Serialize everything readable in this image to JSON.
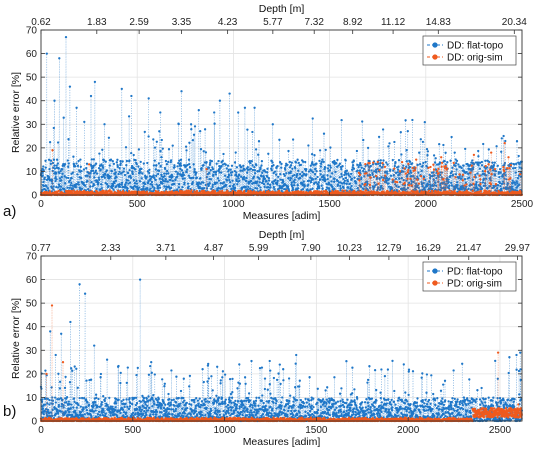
{
  "chart_data": [
    {
      "type": "scatter",
      "panel_label": "a)",
      "xlabel": "Measures [adim]",
      "ylabel": "Relative error [%]",
      "top_xlabel": "Depth [m]",
      "xlim": [
        0,
        2500
      ],
      "ylim": [
        0,
        70
      ],
      "x_ticks": [
        "0",
        "500",
        "1000",
        "1500",
        "2000",
        "2500"
      ],
      "x_tick_values": [
        0,
        500,
        1000,
        1500,
        2000,
        2500
      ],
      "y_ticks": [
        "0",
        "10",
        "20",
        "30",
        "40",
        "50",
        "60",
        "70"
      ],
      "y_tick_values": [
        0,
        10,
        20,
        30,
        40,
        50,
        60,
        70
      ],
      "top_ticks": [
        "0.62",
        "1.83",
        "2.59",
        "3.35",
        "4.23",
        "5.77",
        "7.32",
        "8.92",
        "11.12",
        "14.83",
        "20.34"
      ],
      "top_tick_positions": [
        0,
        290,
        510,
        730,
        970,
        1205,
        1420,
        1620,
        1830,
        2065,
        2460
      ],
      "grid": true,
      "legend_position": "top-right",
      "n_points": 2480,
      "series": [
        {
          "name": "DD: flat-topo",
          "color": "#1f77c8",
          "typical_range": [
            0,
            15
          ],
          "peaks": [
            [
              30,
              60
            ],
            [
              70,
              40
            ],
            [
              95,
              58
            ],
            [
              130,
              67
            ],
            [
              150,
              46
            ],
            [
              185,
              37
            ],
            [
              225,
              31
            ],
            [
              260,
              42
            ],
            [
              280,
              48
            ],
            [
              330,
              30
            ],
            [
              420,
              45
            ],
            [
              470,
              42
            ],
            [
              560,
              41
            ],
            [
              620,
              35
            ],
            [
              730,
              44
            ],
            [
              820,
              36
            ],
            [
              900,
              35
            ],
            [
              930,
              40
            ],
            [
              980,
              43
            ],
            [
              1025,
              35
            ],
            [
              1060,
              37
            ],
            [
              1110,
              37
            ],
            [
              1205,
              30
            ],
            [
              1390,
              21
            ],
            [
              1700,
              20
            ],
            [
              1900,
              19
            ],
            [
              2150,
              18
            ],
            [
              2395,
              24
            ]
          ]
        },
        {
          "name": "DD: orig-sim",
          "color": "#ef5a1e",
          "typical_range": [
            0,
            2
          ],
          "peaks": [
            [
              60,
              19
            ],
            [
              250,
              13
            ],
            [
              860,
              11
            ],
            [
              1750,
              14
            ],
            [
              1950,
              15
            ],
            [
              2080,
              16
            ],
            [
              2250,
              17
            ],
            [
              2340,
              18
            ],
            [
              2410,
              22
            ],
            [
              2430,
              16
            ]
          ]
        }
      ]
    },
    {
      "type": "scatter",
      "panel_label": "b)",
      "xlabel": "Measures [adim]",
      "ylabel": "Relative error [%]",
      "top_xlabel": "Depth [m]",
      "xlim": [
        0,
        2620
      ],
      "ylim": [
        0,
        70
      ],
      "x_ticks": [
        "0",
        "500",
        "1000",
        "1500",
        "2000",
        "2500"
      ],
      "x_tick_values": [
        0,
        500,
        1000,
        1500,
        2000,
        2500
      ],
      "y_ticks": [
        "0",
        "10",
        "20",
        "30",
        "40",
        "50",
        "60",
        "70"
      ],
      "y_tick_values": [
        0,
        10,
        20,
        30,
        40,
        50,
        60,
        70
      ],
      "top_ticks": [
        "0.77",
        "2.33",
        "3.71",
        "4.87",
        "5.99",
        "7.90",
        "10.23",
        "12.79",
        "16.29",
        "21.47",
        "29.97"
      ],
      "top_tick_positions": [
        0,
        380,
        680,
        940,
        1185,
        1470,
        1680,
        1895,
        2110,
        2330,
        2595
      ],
      "grid": true,
      "legend_position": "top-right",
      "n_points": 2600,
      "series": [
        {
          "name": "PD: flat-topo",
          "color": "#1f77c8",
          "typical_range": [
            0,
            10
          ],
          "peaks": [
            [
              50,
              38
            ],
            [
              80,
              28
            ],
            [
              110,
              37
            ],
            [
              160,
              42
            ],
            [
              210,
              58
            ],
            [
              240,
              54
            ],
            [
              290,
              32
            ],
            [
              360,
              26
            ],
            [
              420,
              23
            ],
            [
              540,
              60
            ],
            [
              600,
              25
            ],
            [
              880,
              22
            ],
            [
              960,
              23
            ],
            [
              1080,
              24
            ],
            [
              1220,
              18
            ],
            [
              1390,
              28
            ],
            [
              1550,
              13
            ],
            [
              1850,
              12
            ],
            [
              2100,
              12
            ],
            [
              2400,
              14
            ],
            [
              2590,
              28
            ],
            [
              2610,
              29
            ]
          ]
        },
        {
          "name": "PD: orig-sim",
          "color": "#ef5a1e",
          "typical_range": [
            0,
            1.5
          ],
          "peaks": [
            [
              30,
              20
            ],
            [
              60,
              49
            ],
            [
              120,
              25
            ],
            [
              2490,
              29
            ],
            [
              2560,
              5
            ],
            [
              2600,
              7
            ]
          ]
        }
      ]
    }
  ]
}
